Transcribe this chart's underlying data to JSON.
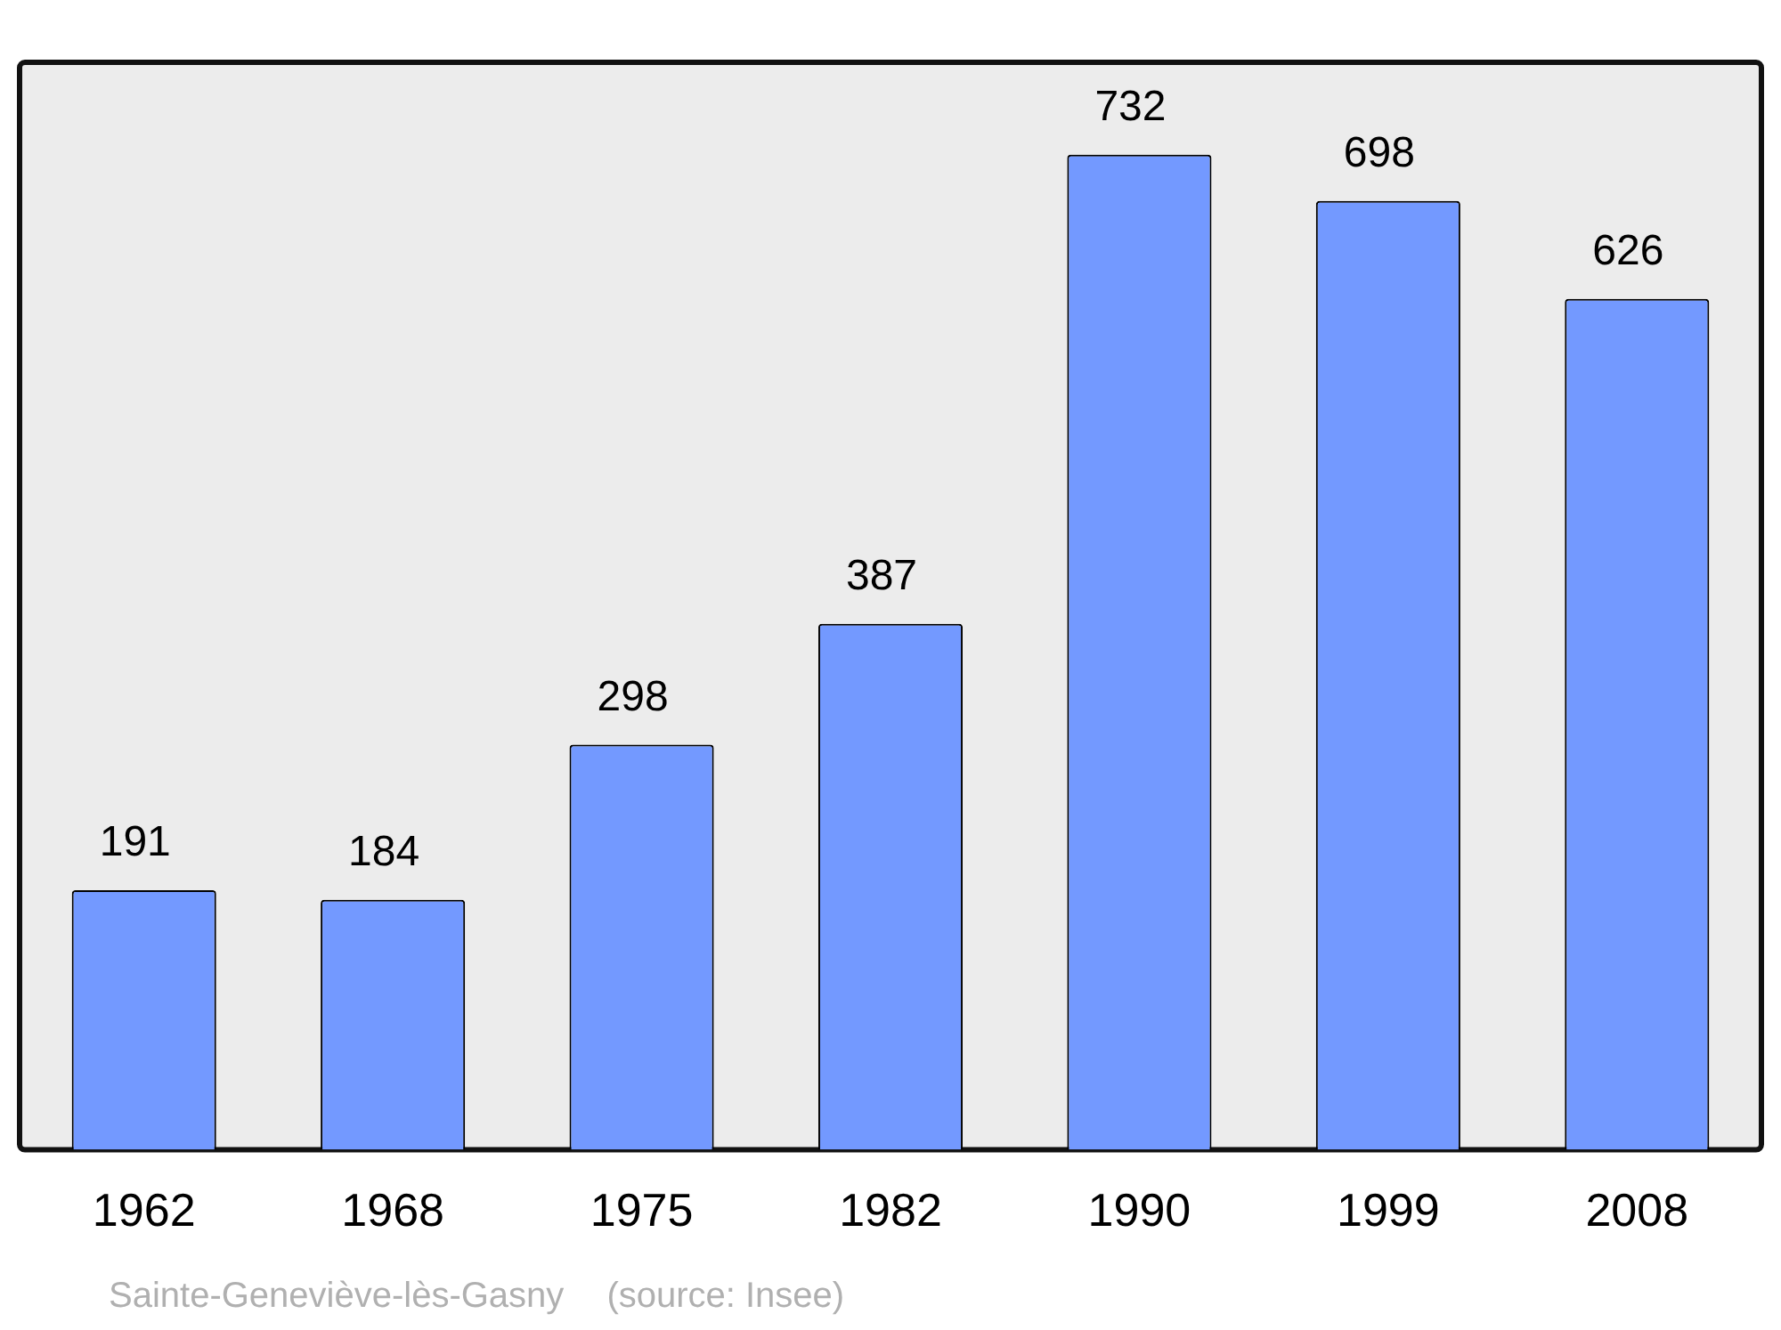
{
  "chart_data": {
    "type": "bar",
    "title": "Sainte-Geneviève-lès-Gasny",
    "annotations": [
      "(source: Insee)"
    ],
    "categories": [
      "1962",
      "1968",
      "1975",
      "1982",
      "1990",
      "1999",
      "2008"
    ],
    "values": [
      191,
      184,
      298,
      387,
      732,
      698,
      626
    ],
    "color": "#7399ff",
    "data_labels": true,
    "grid": false,
    "legend": false
  }
}
